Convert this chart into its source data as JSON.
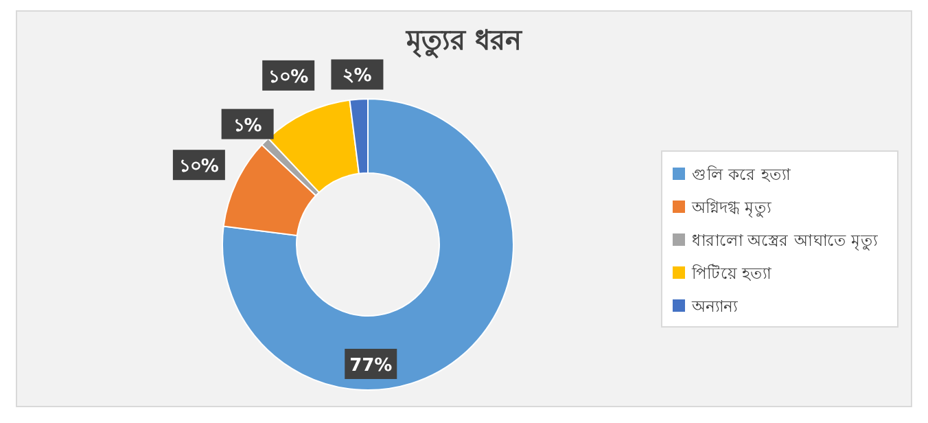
{
  "chart_data": {
    "type": "donut",
    "title": "মৃত্যুর ধরন",
    "categories": [
      "গুলি করে হত্যা",
      "অগ্নিদগ্ধ মৃত্যু",
      "ধারালো অস্ত্রের আঘাতে মৃত্যু",
      "পিটিয়ে হত্যা",
      "অন্যান্য"
    ],
    "values": [
      77,
      10,
      1,
      10,
      2
    ],
    "colors": [
      "#5b9bd5",
      "#ed7d31",
      "#a5a5a5",
      "#ffc000",
      "#4472c4"
    ],
    "value_labels": [
      "77%",
      "১০%",
      "১%",
      "১০%",
      "২%"
    ],
    "legend": "right"
  }
}
